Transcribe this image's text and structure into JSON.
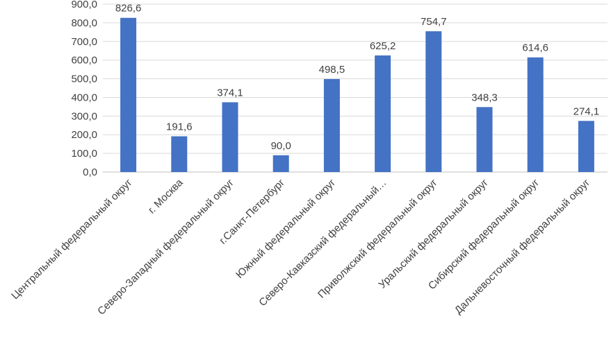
{
  "chart_data": {
    "type": "bar",
    "categories": [
      "Центральный федеральный округ",
      "г. Москва",
      "Северо-Западный федеральный округ",
      "г.Санкт-Петербург",
      "Южный федеральный округ",
      "Северо-Кавказский федеральный…",
      "Приволжский федеральный округ",
      "Уральский федеральный округ",
      "Сибирский федеральный округ",
      "Дальневосточный федеральный округ"
    ],
    "values": [
      826.6,
      191.6,
      374.1,
      90.0,
      498.5,
      625.2,
      754.7,
      348.3,
      614.6,
      274.1
    ],
    "value_labels": [
      "826,6",
      "191,6",
      "374,1",
      "90,0",
      "498,5",
      "625,2",
      "754,7",
      "348,3",
      "614,6",
      "274,1"
    ],
    "yticks": [
      0,
      100,
      200,
      300,
      400,
      500,
      600,
      700,
      800,
      900
    ],
    "ytick_labels": [
      "0,0",
      "100,0",
      "200,0",
      "300,0",
      "400,0",
      "500,0",
      "600,0",
      "700,0",
      "800,0",
      "900,0"
    ],
    "ylim": [
      0,
      900
    ],
    "grid": true,
    "legend": "none",
    "bar_color": "#4472c4",
    "title": "",
    "xlabel": "",
    "ylabel": ""
  }
}
